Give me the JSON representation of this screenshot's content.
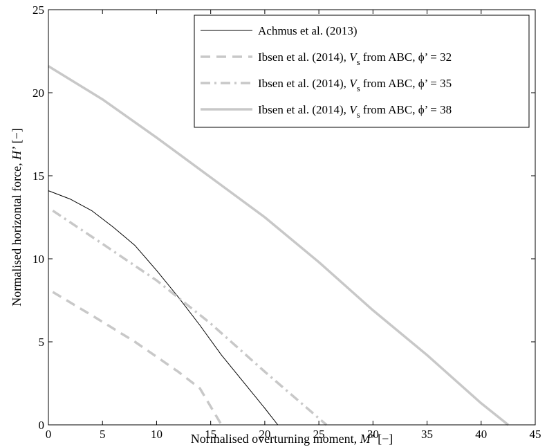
{
  "chart_data": {
    "type": "line",
    "xlabel": "Normalised overturning moment, M’ [−]",
    "xlabel_parts": [
      "Normalised overturning moment, ",
      "M’",
      " [−]"
    ],
    "ylabel": "Normalised horizontal force, H’ [−]",
    "ylabel_parts": [
      "Normalised horizontal force, ",
      "H’",
      " [−]"
    ],
    "xlim": [
      0,
      45
    ],
    "ylim": [
      0,
      25
    ],
    "xticks": [
      0,
      5,
      10,
      15,
      20,
      25,
      30,
      35,
      40,
      45
    ],
    "yticks": [
      0,
      5,
      10,
      15,
      20,
      25
    ],
    "grid": false,
    "legend_position": "top-right",
    "series": [
      {
        "name": "Achmus et al. (2013)",
        "legend_parts": [
          "Achmus et al. (2013)"
        ],
        "color": "#000000",
        "style": "solid",
        "points": [
          [
            0,
            14.1
          ],
          [
            2,
            13.6
          ],
          [
            4,
            12.9
          ],
          [
            6,
            11.9
          ],
          [
            8,
            10.8
          ],
          [
            10,
            9.3
          ],
          [
            12,
            7.7
          ],
          [
            14,
            6.0
          ],
          [
            16,
            4.2
          ],
          [
            18,
            2.6
          ],
          [
            20,
            1.0
          ],
          [
            21.2,
            0
          ]
        ]
      },
      {
        "name": "Ibsen et al. (2014), V_s from ABC, ϕ’ = 32",
        "legend_parts": [
          "Ibsen et al. (2014), ",
          "V",
          "s",
          " from ABC, ϕ’ = 32"
        ],
        "color": "#c8c8c8",
        "style": "dashed",
        "points": [
          [
            0.4,
            8.0
          ],
          [
            4,
            6.6
          ],
          [
            8,
            5.0
          ],
          [
            12,
            3.2
          ],
          [
            14,
            2.2
          ],
          [
            16,
            0
          ]
        ]
      },
      {
        "name": "Ibsen et al. (2014), V_s from ABC, ϕ’ = 35",
        "legend_parts": [
          "Ibsen et al. (2014), ",
          "V",
          "s",
          " from ABC, ϕ’ = 35"
        ],
        "color": "#c8c8c8",
        "style": "dashdot",
        "points": [
          [
            0.4,
            12.9
          ],
          [
            5,
            10.9
          ],
          [
            10,
            8.7
          ],
          [
            15,
            6.1
          ],
          [
            20,
            3.2
          ],
          [
            25.7,
            0
          ]
        ]
      },
      {
        "name": "Ibsen et al. (2014), V_s from ABC, ϕ’ = 38",
        "legend_parts": [
          "Ibsen et al. (2014), ",
          "V",
          "s",
          " from ABC, ϕ’ = 38"
        ],
        "color": "#c8c8c8",
        "style": "solid-thick",
        "points": [
          [
            0,
            21.6
          ],
          [
            5,
            19.6
          ],
          [
            10,
            17.3
          ],
          [
            15,
            14.9
          ],
          [
            20,
            12.5
          ],
          [
            25,
            9.8
          ],
          [
            30,
            6.9
          ],
          [
            35,
            4.2
          ],
          [
            40,
            1.3
          ],
          [
            42.5,
            0
          ]
        ]
      }
    ]
  }
}
